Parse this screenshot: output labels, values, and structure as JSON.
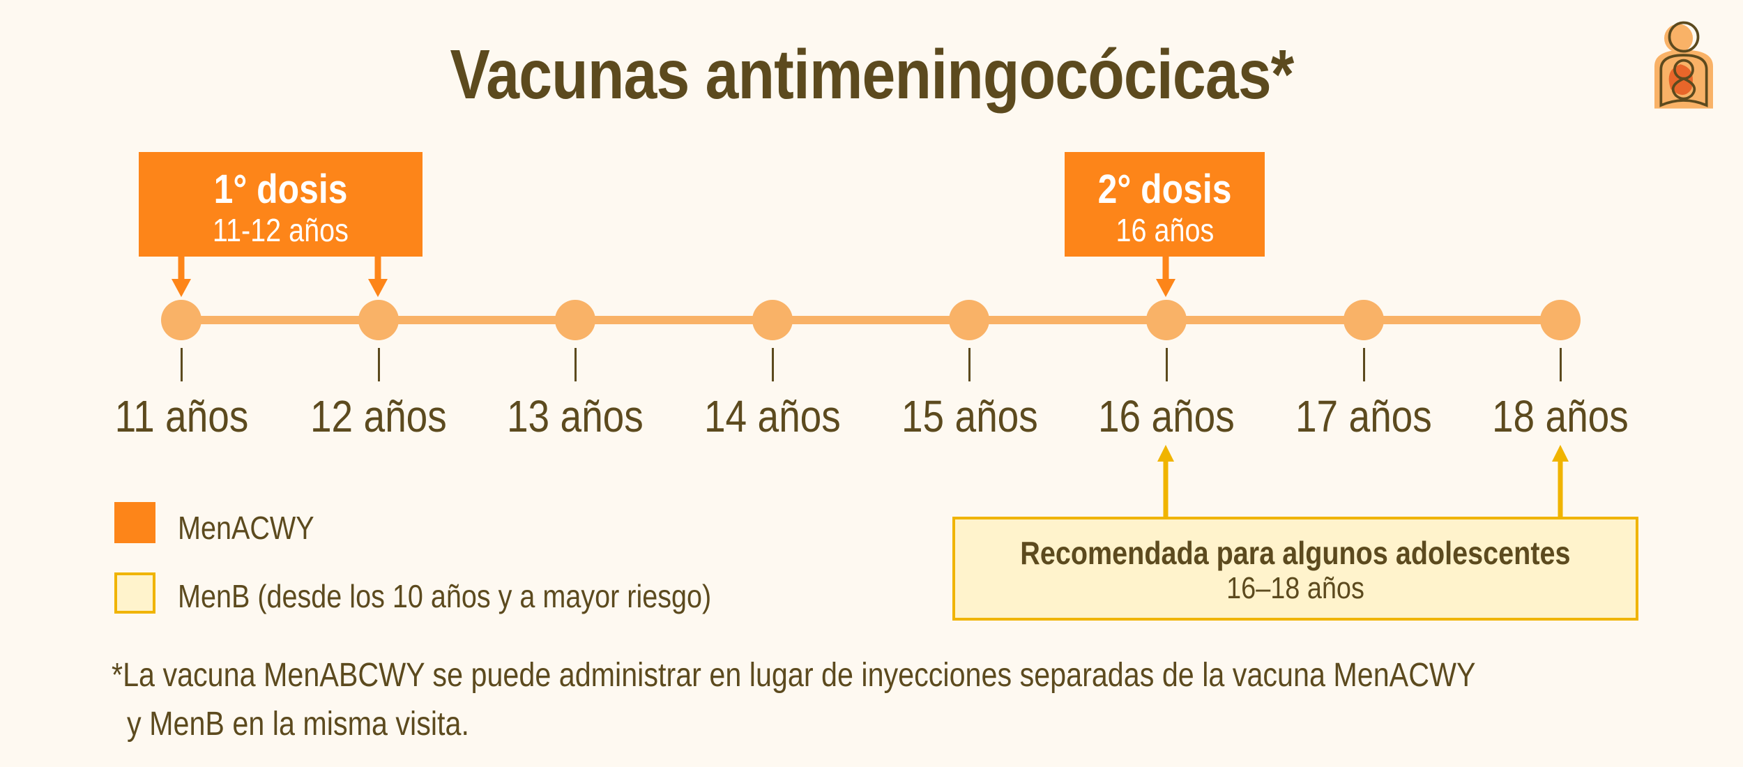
{
  "title": "Vacunas antimeningocócicas*",
  "colors": {
    "menacwy": "#fd8519",
    "menb_fill": "#fff3cc",
    "menb_border": "#f0b400",
    "timeline": "#f9b267",
    "text": "#5c4a1e",
    "background": "#fef9f1"
  },
  "logo": {
    "icon": "parent-child-logo"
  },
  "doses": [
    {
      "label": "1° dosis",
      "range": "11-12 años"
    },
    {
      "label": "2° dosis",
      "range": "16 años"
    }
  ],
  "ages": [
    "11 años",
    "12 años",
    "13 años",
    "14 años",
    "15 años",
    "16 años",
    "17 años",
    "18 años"
  ],
  "legend": [
    {
      "label": "MenACWY"
    },
    {
      "label": "MenB (desde los 10 años y a mayor riesgo)"
    }
  ],
  "recommendation": {
    "title": "Recomendada para algunos adolescentes",
    "range": "16–18 años"
  },
  "footnote": {
    "line1": "*La vacuna MenABCWY se puede administrar en lugar de inyecciones separadas de la vacuna MenACWY",
    "line2": "y MenB en la misma visita."
  }
}
